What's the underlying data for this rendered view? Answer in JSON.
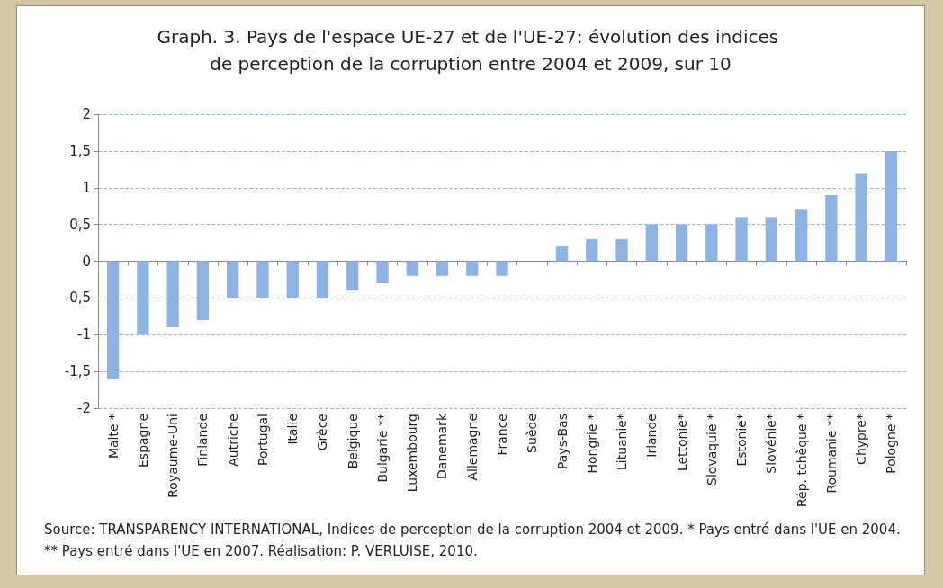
{
  "chart_data": {
    "type": "bar",
    "title": "Graph. 3. Pays de l'espace UE-27 et de l'UE-27: évolution des indices de perception de la corruption entre 2004 et 2009, sur 10",
    "categories": [
      "Malte *",
      "Espagne",
      "Royaume-Uni",
      "Finlande",
      "Autriche",
      "Portugal",
      "Italie",
      "Grèce",
      "Belgique",
      "Bulgarie **",
      "Luxembourg",
      "Danemark",
      "Allemagne",
      "France",
      "Suède",
      "Pays-Bas",
      "Hongrie *",
      "Lituanie*",
      "Irlande",
      "Lettonie*",
      "Slovaquie *",
      "Estonie*",
      "Slovénie*",
      "Rép. tchèque *",
      "Roumanie **",
      "Chypre*",
      "Pologne *"
    ],
    "values": [
      -1.6,
      -1.0,
      -0.9,
      -0.8,
      -0.5,
      -0.5,
      -0.5,
      -0.5,
      -0.4,
      -0.3,
      -0.2,
      -0.2,
      -0.2,
      -0.2,
      0,
      0.2,
      0.3,
      0.3,
      0.5,
      0.5,
      0.5,
      0.6,
      0.6,
      0.7,
      0.9,
      1.2,
      1.5
    ],
    "color": "#8db3e2",
    "ylim": [
      -2,
      2
    ],
    "yticks": [
      {
        "value": -2,
        "label": "-2"
      },
      {
        "value": -1.5,
        "label": "-1,5"
      },
      {
        "value": -1,
        "label": "-1"
      },
      {
        "value": -0.5,
        "label": "-0,5"
      },
      {
        "value": 0,
        "label": "0"
      },
      {
        "value": 0.5,
        "label": "0,5"
      },
      {
        "value": 1,
        "label": "1"
      },
      {
        "value": 1.5,
        "label": "1,5"
      },
      {
        "value": 2,
        "label": "2"
      }
    ],
    "grid": "y",
    "annotations": [
      "Source: TRANSPARENCY INTERNATIONAL,  Indices de perception de la corruption 2004 et 2009. * Pays entré dans l'UE en 2004. ** Pays entré dans l'UE en 2007. Réalisation:  P. VERLUISE, 2010."
    ]
  }
}
